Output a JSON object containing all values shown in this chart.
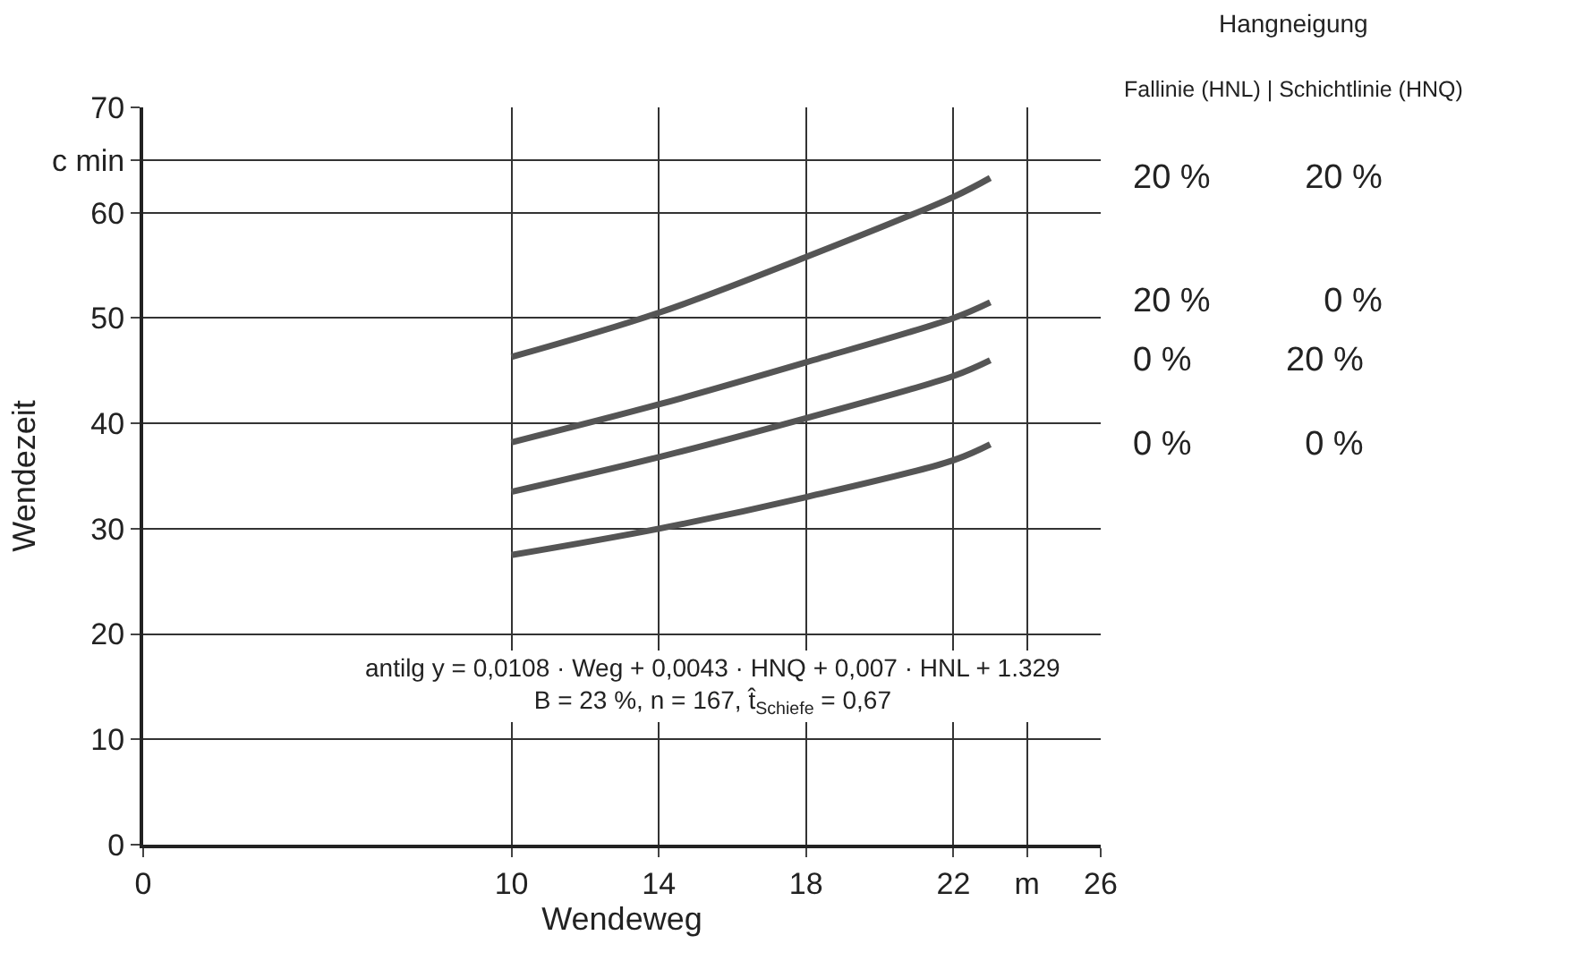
{
  "chart_data": {
    "type": "line",
    "xlabel": "Wendeweg",
    "ylabel": "Wendezeit",
    "legend_title": "Hangneigung",
    "x": [
      10,
      14,
      18,
      22,
      23
    ],
    "series": [
      {
        "name": "20 %          20 %",
        "color": "#555555",
        "values": [
          46.3,
          50.5,
          55.8,
          61.5,
          63.3
        ]
      },
      {
        "name": "20 %            0 %",
        "color": "#555555",
        "values": [
          38.2,
          41.8,
          45.8,
          50,
          51.5
        ]
      },
      {
        "name": "0 %          20 %",
        "color": "#555555",
        "values": [
          33.5,
          36.8,
          40.5,
          44.5,
          46
        ]
      },
      {
        "name": "0 %            0 %",
        "color": "#555555",
        "values": [
          27.5,
          30,
          33,
          36.5,
          38
        ]
      }
    ],
    "xlim": [
      0,
      26
    ],
    "xticks": [
      0,
      10,
      14,
      18,
      22,
      {
        "value": 24,
        "label": "m"
      },
      26
    ],
    "ylim": [
      0,
      70
    ],
    "yticks": [
      0,
      10,
      20,
      30,
      40,
      50,
      60,
      {
        "value": 65,
        "label": "c min"
      },
      70
    ],
    "grid": true,
    "legend": false,
    "marker": "none",
    "line_style": "solid",
    "annotations": [
      "Fallinie (HNL) | Schichtlinie (HNQ)",
      "antilg y = 0,0108 · Weg + 0,0043 · HNQ + 0,007 · HNL + 1.329",
      "B = 23 %, n = 167, t̂$_{Schiefe}$ = 0,67"
    ]
  }
}
